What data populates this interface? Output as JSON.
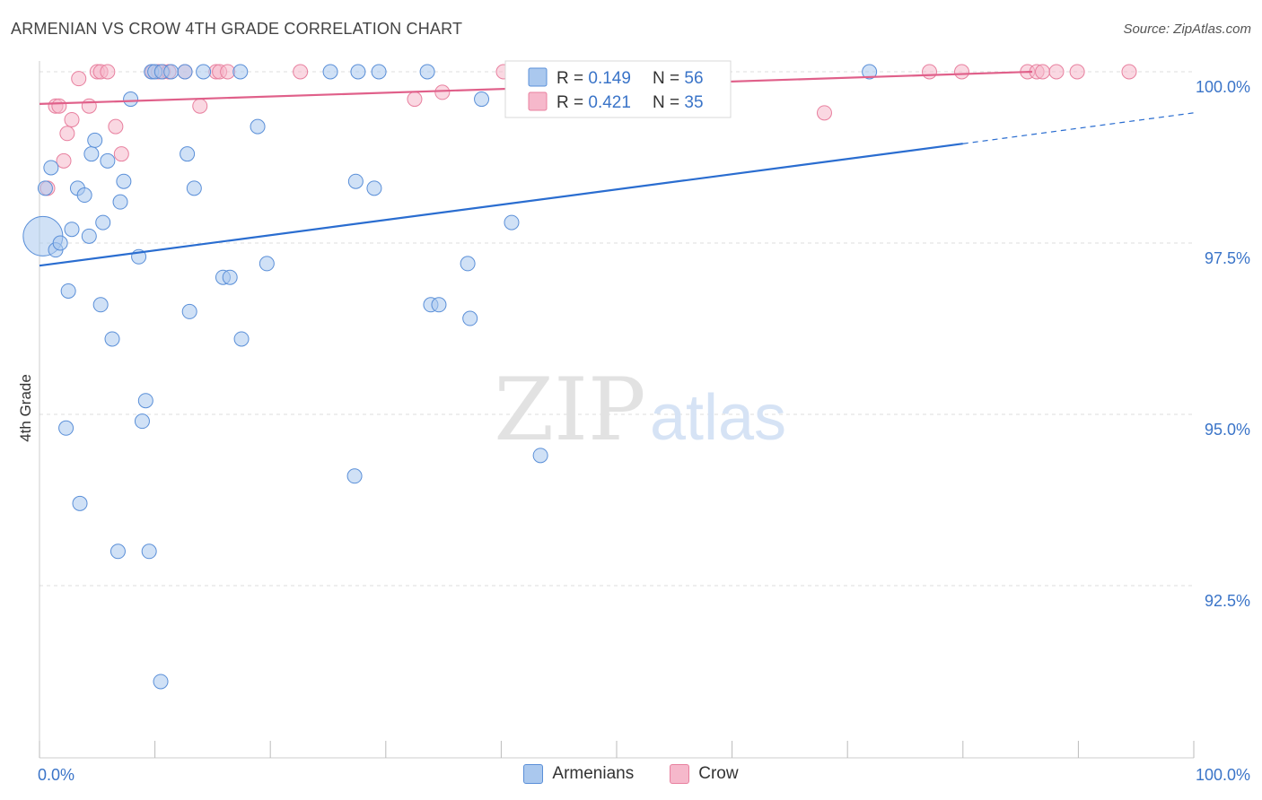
{
  "header": {
    "title": "ARMENIAN VS CROW 4TH GRADE CORRELATION CHART",
    "source": "Source: ZipAtlas.com"
  },
  "watermark": {
    "zip": "ZIP",
    "atlas": "atlas"
  },
  "colors": {
    "armenians_fill": "#aac8ee",
    "armenians_stroke": "#5a8fd8",
    "armenians_line": "#2a6dd0",
    "crow_fill": "#f6b8cb",
    "crow_stroke": "#e8809f",
    "crow_line": "#e0608a",
    "axis_text": "#3a74c8",
    "grid": "#dddddd"
  },
  "legend_top": {
    "rows": [
      {
        "r_label": "R = ",
        "r_value": "0.149",
        "n_label": "N = ",
        "n_value": "56"
      },
      {
        "r_label": "R = ",
        "r_value": "0.421",
        "n_label": "N = ",
        "n_value": "35"
      }
    ]
  },
  "legend_bottom": {
    "armenians": "Armenians",
    "crow": "Crow"
  },
  "chart_data": {
    "type": "scatter",
    "title": "ARMENIAN VS CROW 4TH GRADE CORRELATION CHART",
    "xlabel": "",
    "ylabel": "4th Grade",
    "xlim": [
      0,
      100
    ],
    "ylim": [
      90.3,
      100.5
    ],
    "x_tick_labels": [
      "0.0%",
      "100.0%"
    ],
    "y_ticks": [
      {
        "value": 100.0,
        "label": "100.0%"
      },
      {
        "value": 97.5,
        "label": "97.5%"
      },
      {
        "value": 95.0,
        "label": "95.0%"
      },
      {
        "value": 92.5,
        "label": "92.5%"
      }
    ],
    "series": [
      {
        "name": "Armenians",
        "points": [
          [
            0.3,
            97.6,
            3
          ],
          [
            0.5,
            98.3,
            1
          ],
          [
            1.0,
            98.6,
            1
          ],
          [
            1.4,
            97.4,
            1
          ],
          [
            1.8,
            97.5,
            1
          ],
          [
            2.3,
            94.8,
            1
          ],
          [
            2.5,
            96.8,
            1
          ],
          [
            2.8,
            97.7,
            1
          ],
          [
            3.3,
            98.3,
            1
          ],
          [
            3.5,
            93.7,
            1
          ],
          [
            3.9,
            98.2,
            1
          ],
          [
            4.3,
            97.6,
            1
          ],
          [
            4.5,
            98.8,
            1
          ],
          [
            4.8,
            99.0,
            1
          ],
          [
            5.3,
            96.6,
            1
          ],
          [
            5.5,
            97.8,
            1
          ],
          [
            5.9,
            98.7,
            1
          ],
          [
            6.3,
            96.1,
            1
          ],
          [
            6.8,
            93.0,
            1
          ],
          [
            7.0,
            98.1,
            1
          ],
          [
            7.3,
            98.4,
            1
          ],
          [
            7.9,
            99.6,
            1
          ],
          [
            8.6,
            97.3,
            1
          ],
          [
            8.9,
            94.9,
            1
          ],
          [
            9.2,
            95.2,
            1
          ],
          [
            9.5,
            93.0,
            1
          ],
          [
            9.7,
            100.0,
            1
          ],
          [
            10.0,
            100.0,
            1
          ],
          [
            10.5,
            91.1,
            1
          ],
          [
            10.6,
            100.0,
            1
          ],
          [
            11.4,
            100.0,
            1
          ],
          [
            12.6,
            100.0,
            1
          ],
          [
            12.8,
            98.8,
            1
          ],
          [
            13.0,
            96.5,
            1
          ],
          [
            13.4,
            98.3,
            1
          ],
          [
            14.2,
            100.0,
            1
          ],
          [
            15.9,
            97.0,
            1
          ],
          [
            16.5,
            97.0,
            1
          ],
          [
            17.4,
            100.0,
            1
          ],
          [
            17.5,
            96.1,
            1
          ],
          [
            18.9,
            99.2,
            1
          ],
          [
            19.7,
            97.2,
            1
          ],
          [
            25.2,
            100.0,
            1
          ],
          [
            27.3,
            94.1,
            1
          ],
          [
            27.4,
            98.4,
            1
          ],
          [
            27.6,
            100.0,
            1
          ],
          [
            29.0,
            98.3,
            1
          ],
          [
            29.4,
            100.0,
            1
          ],
          [
            33.6,
            100.0,
            1
          ],
          [
            33.9,
            96.6,
            1
          ],
          [
            34.6,
            96.6,
            1
          ],
          [
            37.1,
            97.2,
            1
          ],
          [
            37.3,
            96.4,
            1
          ],
          [
            38.3,
            99.6,
            1
          ],
          [
            40.9,
            97.8,
            1
          ],
          [
            43.4,
            94.4,
            1
          ],
          [
            71.9,
            100.0,
            1
          ]
        ],
        "trend": {
          "x0": 0,
          "y0": 97.17,
          "x1": 80,
          "y1": 98.95,
          "dash_to_x": 100,
          "dash_to_y": 99.4
        }
      },
      {
        "name": "Crow",
        "points": [
          [
            0.7,
            98.3,
            1
          ],
          [
            1.4,
            99.5,
            1
          ],
          [
            1.7,
            99.5,
            1
          ],
          [
            2.1,
            98.7,
            1
          ],
          [
            2.4,
            99.1,
            1
          ],
          [
            2.8,
            99.3,
            1
          ],
          [
            3.4,
            99.9,
            1
          ],
          [
            4.3,
            99.5,
            1
          ],
          [
            5.0,
            100.0,
            1
          ],
          [
            5.3,
            100.0,
            1
          ],
          [
            5.9,
            100.0,
            1
          ],
          [
            6.6,
            99.2,
            1
          ],
          [
            7.1,
            98.8,
            1
          ],
          [
            9.8,
            100.0,
            1
          ],
          [
            10.3,
            100.0,
            1
          ],
          [
            10.7,
            100.0,
            1
          ],
          [
            11.2,
            100.0,
            1
          ],
          [
            12.6,
            100.0,
            1
          ],
          [
            13.9,
            99.5,
            1
          ],
          [
            15.3,
            100.0,
            1
          ],
          [
            15.6,
            100.0,
            1
          ],
          [
            16.3,
            100.0,
            1
          ],
          [
            22.6,
            100.0,
            1
          ],
          [
            32.5,
            99.6,
            1
          ],
          [
            34.9,
            99.7,
            1
          ],
          [
            40.2,
            100.0,
            1
          ],
          [
            68.0,
            99.4,
            1
          ],
          [
            77.1,
            100.0,
            1
          ],
          [
            79.9,
            100.0,
            1
          ],
          [
            85.6,
            100.0,
            1
          ],
          [
            86.4,
            100.0,
            1
          ],
          [
            86.9,
            100.0,
            1
          ],
          [
            88.1,
            100.0,
            1
          ],
          [
            89.9,
            100.0,
            1
          ],
          [
            94.4,
            100.0,
            1
          ]
        ],
        "trend": {
          "x0": 0,
          "y0": 99.53,
          "x1": 86,
          "y1": 100.0
        }
      }
    ]
  }
}
